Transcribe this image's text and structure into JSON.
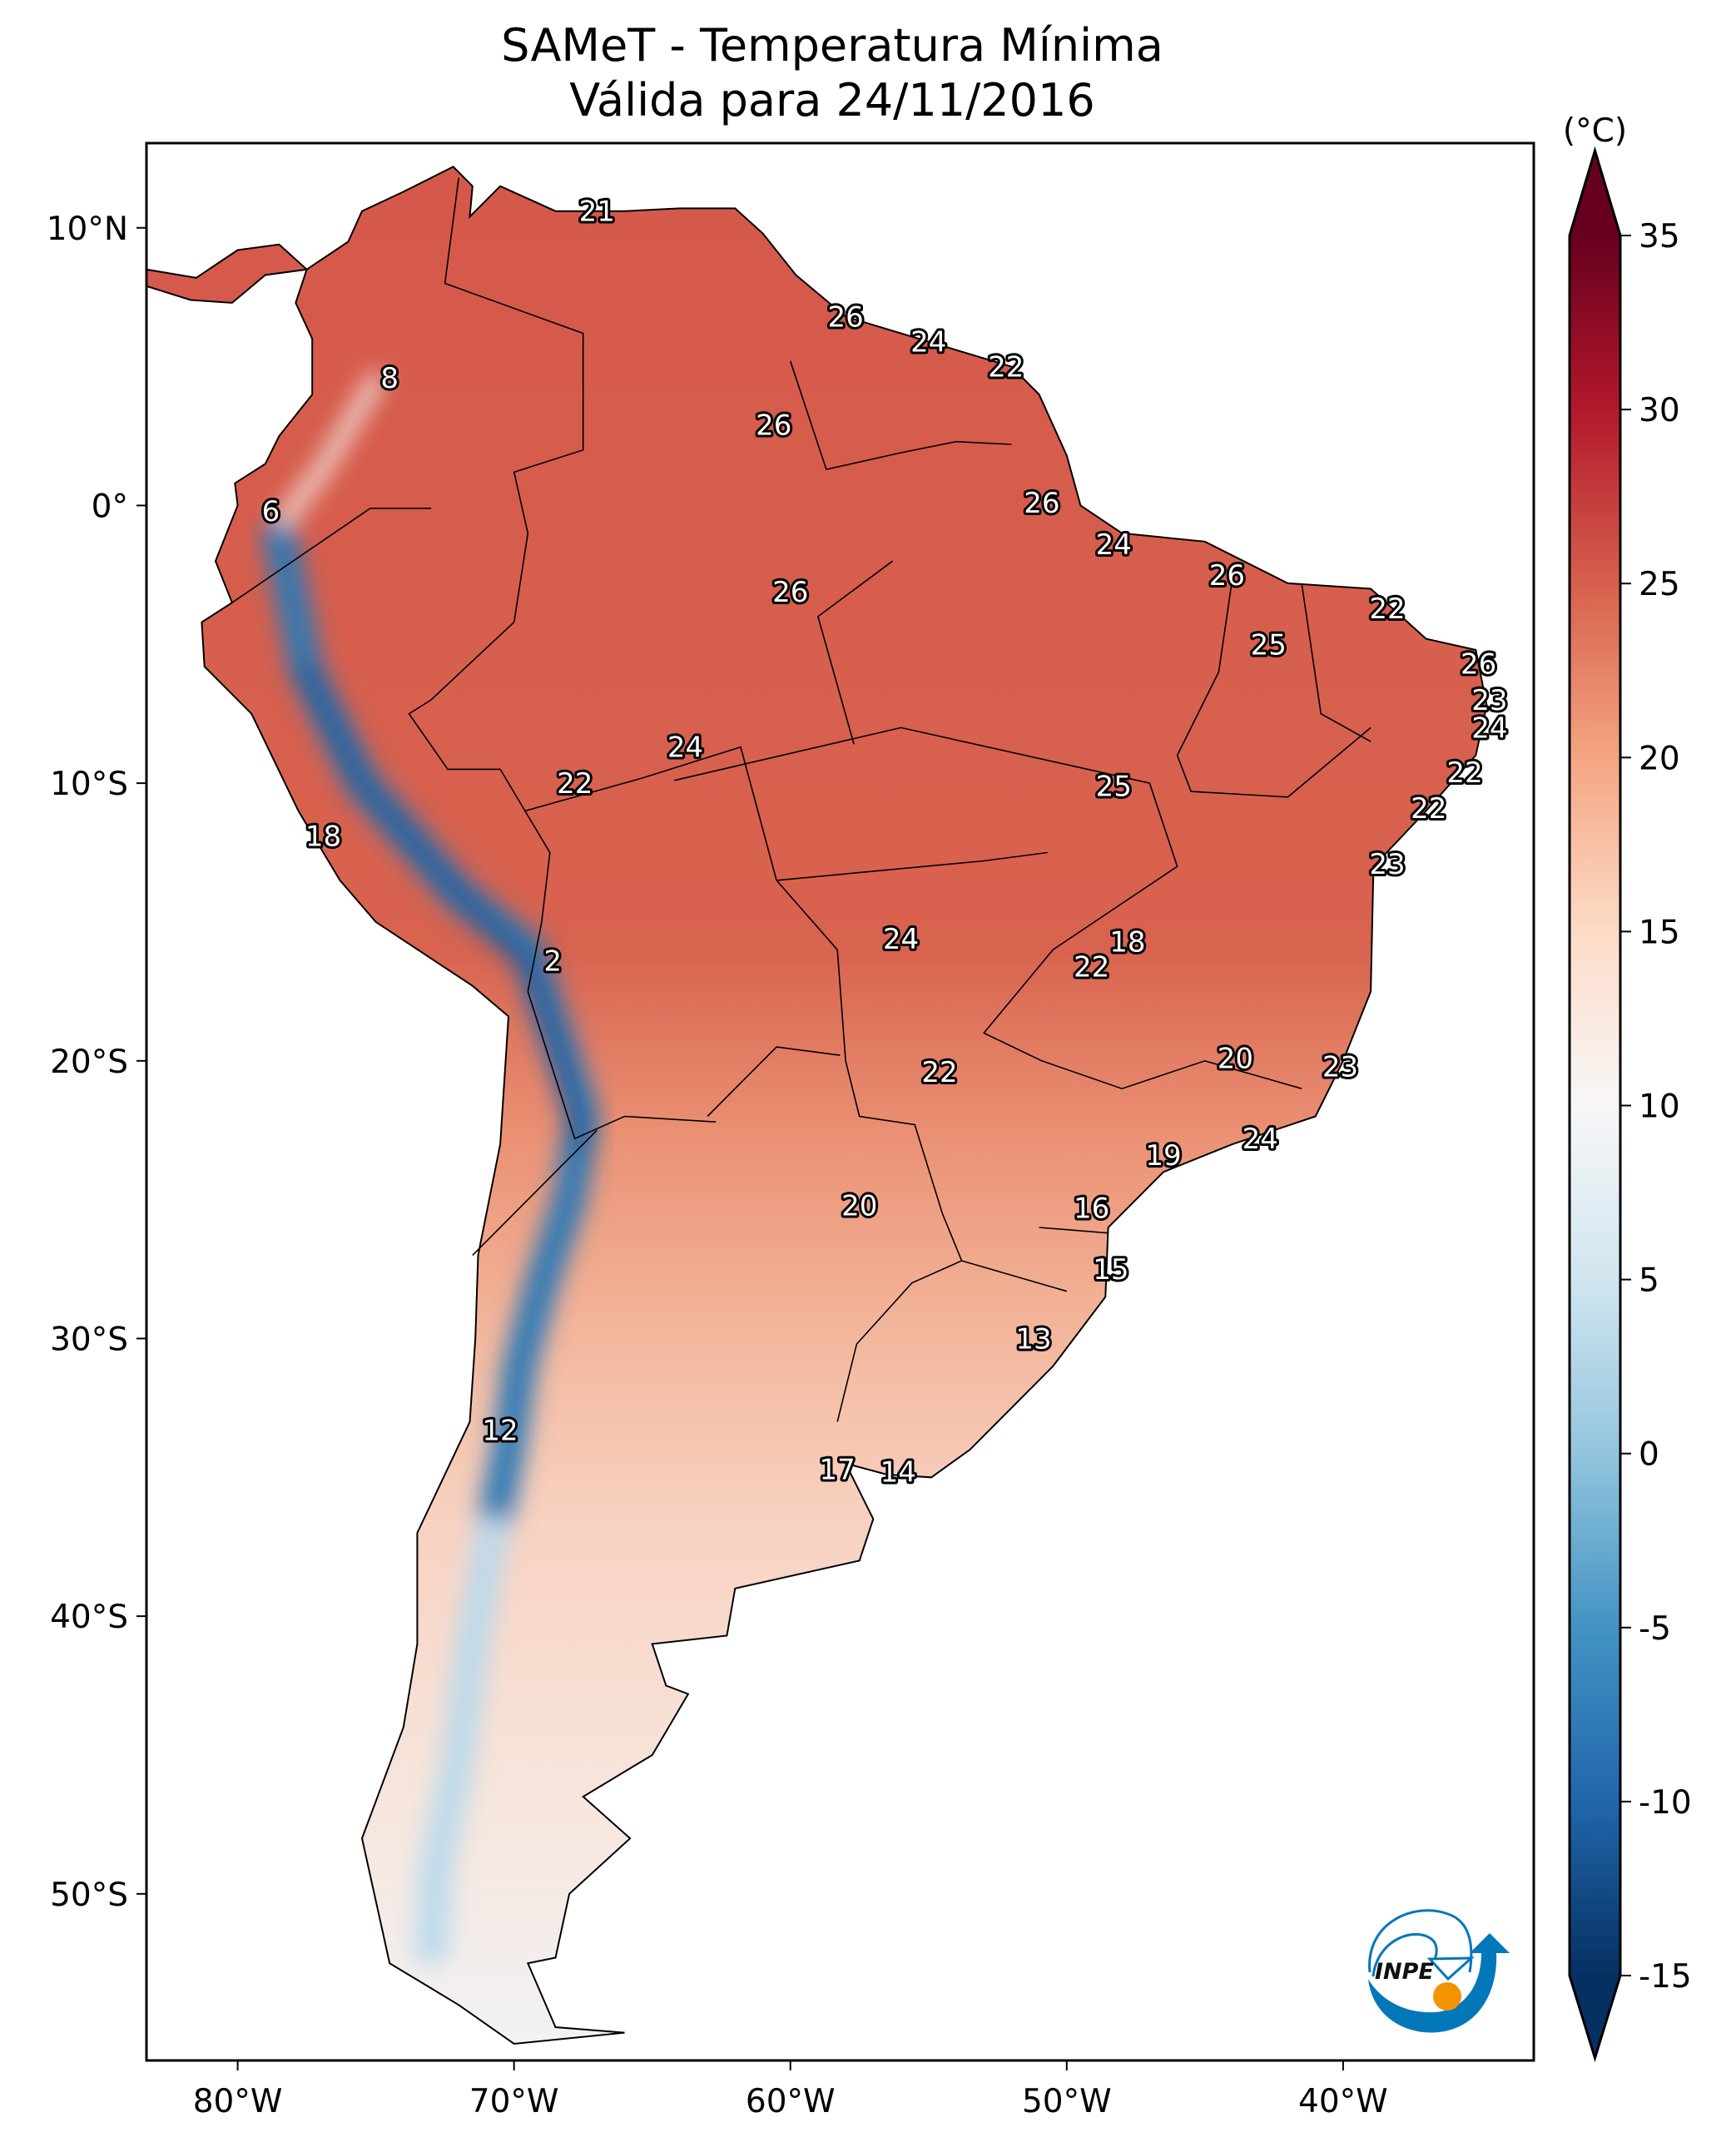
{
  "title": {
    "line1": "SAMeT - Temperatura Mínima",
    "line2": "Válida para 24/11/2016"
  },
  "chart_data": {
    "type": "heatmap",
    "title": "SAMeT - Temperatura Mínima Válida para 24/11/2016",
    "extent": {
      "lon": [
        -83.3,
        -33.1
      ],
      "lat": [
        -56.0,
        13.05
      ]
    },
    "x_ticks": [
      {
        "value": -80,
        "label": "80°W"
      },
      {
        "value": -70,
        "label": "70°W"
      },
      {
        "value": -60,
        "label": "60°W"
      },
      {
        "value": -50,
        "label": "50°W"
      },
      {
        "value": -40,
        "label": "40°W"
      }
    ],
    "y_ticks": [
      {
        "value": 10,
        "label": "10°N"
      },
      {
        "value": 0,
        "label": "0°"
      },
      {
        "value": -10,
        "label": "10°S"
      },
      {
        "value": -20,
        "label": "20°S"
      },
      {
        "value": -30,
        "label": "30°S"
      },
      {
        "value": -40,
        "label": "40°S"
      },
      {
        "value": -50,
        "label": "50°S"
      }
    ],
    "colorbar": {
      "unit_label": "(°C)",
      "range": [
        -15,
        35
      ],
      "extend": "both",
      "ticks": [
        35,
        30,
        25,
        20,
        15,
        10,
        5,
        0,
        -5,
        -10,
        -15
      ],
      "tick_labels": [
        "35",
        "30",
        "25",
        "20",
        "15",
        "10",
        "5",
        "0",
        "-5",
        "-10",
        "-15"
      ],
      "colormap": [
        {
          "v": -15,
          "c": "#053061"
        },
        {
          "v": -10,
          "c": "#2166ac"
        },
        {
          "v": -5,
          "c": "#4393c3"
        },
        {
          "v": 0,
          "c": "#92c5de"
        },
        {
          "v": 5,
          "c": "#d1e5f0"
        },
        {
          "v": 10,
          "c": "#f7f7f7"
        },
        {
          "v": 15,
          "c": "#fddbc7"
        },
        {
          "v": 20,
          "c": "#f4a582"
        },
        {
          "v": 25,
          "c": "#d6604d"
        },
        {
          "v": 30,
          "c": "#b2182b"
        },
        {
          "v": 35,
          "c": "#67001f"
        }
      ]
    },
    "station_labels": [
      {
        "label": "21",
        "lon": -67.0,
        "lat": 10.6
      },
      {
        "label": "26",
        "lon": -58.0,
        "lat": 6.8
      },
      {
        "label": "24",
        "lon": -55.0,
        "lat": 5.9
      },
      {
        "label": "22",
        "lon": -52.2,
        "lat": 5.0
      },
      {
        "label": "8",
        "lon": -74.5,
        "lat": 4.6
      },
      {
        "label": "26",
        "lon": -60.6,
        "lat": 2.9
      },
      {
        "label": "6",
        "lon": -78.8,
        "lat": -0.2
      },
      {
        "label": "26",
        "lon": -50.9,
        "lat": 0.1
      },
      {
        "label": "24",
        "lon": -48.3,
        "lat": -1.4
      },
      {
        "label": "26",
        "lon": -44.2,
        "lat": -2.5
      },
      {
        "label": "26",
        "lon": -60.0,
        "lat": -3.1
      },
      {
        "label": "22",
        "lon": -38.4,
        "lat": -3.7
      },
      {
        "label": "25",
        "lon": -42.7,
        "lat": -5.0
      },
      {
        "label": "26",
        "lon": -35.1,
        "lat": -5.7
      },
      {
        "label": "23",
        "lon": -34.7,
        "lat": -7.0
      },
      {
        "label": "24",
        "lon": -34.7,
        "lat": -8.0
      },
      {
        "label": "24",
        "lon": -63.8,
        "lat": -8.7
      },
      {
        "label": "22",
        "lon": -35.6,
        "lat": -9.6
      },
      {
        "label": "22",
        "lon": -67.8,
        "lat": -10.0
      },
      {
        "label": "25",
        "lon": -48.3,
        "lat": -10.1
      },
      {
        "label": "22",
        "lon": -36.9,
        "lat": -10.9
      },
      {
        "label": "18",
        "lon": -76.9,
        "lat": -11.9
      },
      {
        "label": "23",
        "lon": -38.4,
        "lat": -12.9
      },
      {
        "label": "24",
        "lon": -56.0,
        "lat": -15.6
      },
      {
        "label": "18",
        "lon": -47.8,
        "lat": -15.7
      },
      {
        "label": "2",
        "lon": -68.6,
        "lat": -16.4
      },
      {
        "label": "22",
        "lon": -49.1,
        "lat": -16.6
      },
      {
        "label": "20",
        "lon": -43.9,
        "lat": -19.9
      },
      {
        "label": "23",
        "lon": -40.1,
        "lat": -20.2
      },
      {
        "label": "22",
        "lon": -54.6,
        "lat": -20.4
      },
      {
        "label": "24",
        "lon": -43.0,
        "lat": -22.8
      },
      {
        "label": "19",
        "lon": -46.5,
        "lat": -23.4
      },
      {
        "label": "20",
        "lon": -57.5,
        "lat": -25.2
      },
      {
        "label": "16",
        "lon": -49.1,
        "lat": -25.3
      },
      {
        "label": "15",
        "lon": -48.4,
        "lat": -27.5
      },
      {
        "label": "13",
        "lon": -51.2,
        "lat": -30.0
      },
      {
        "label": "12",
        "lon": -70.5,
        "lat": -33.3
      },
      {
        "label": "17",
        "lon": -58.3,
        "lat": -34.7
      },
      {
        "label": "14",
        "lon": -56.1,
        "lat": -34.8
      }
    ]
  },
  "logo": {
    "text": "INPE",
    "colors": {
      "blue": "#0277b9",
      "orange": "#f29400"
    }
  }
}
